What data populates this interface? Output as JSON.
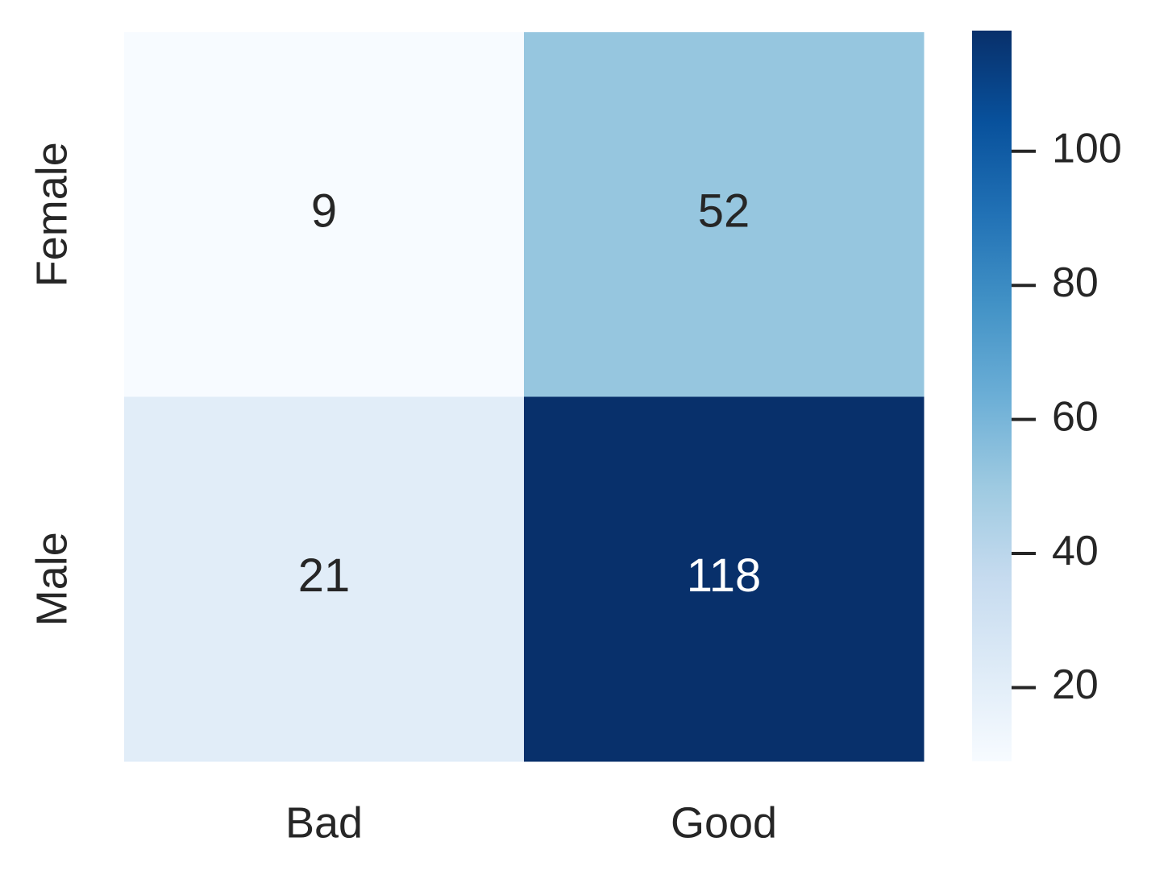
{
  "chart_data": {
    "type": "heatmap",
    "x_categories": [
      "Bad",
      "Good"
    ],
    "y_categories": [
      "Female",
      "Male"
    ],
    "values": [
      [
        9,
        52
      ],
      [
        21,
        118
      ]
    ],
    "colormap": [
      "#f7fbff",
      "#deebf7",
      "#c6dbef",
      "#9ecae1",
      "#6baed6",
      "#4292c6",
      "#2171b5",
      "#08519c",
      "#08306b"
    ],
    "zlim": [
      9,
      118
    ],
    "zticks": [
      20,
      40,
      60,
      80,
      100
    ]
  }
}
